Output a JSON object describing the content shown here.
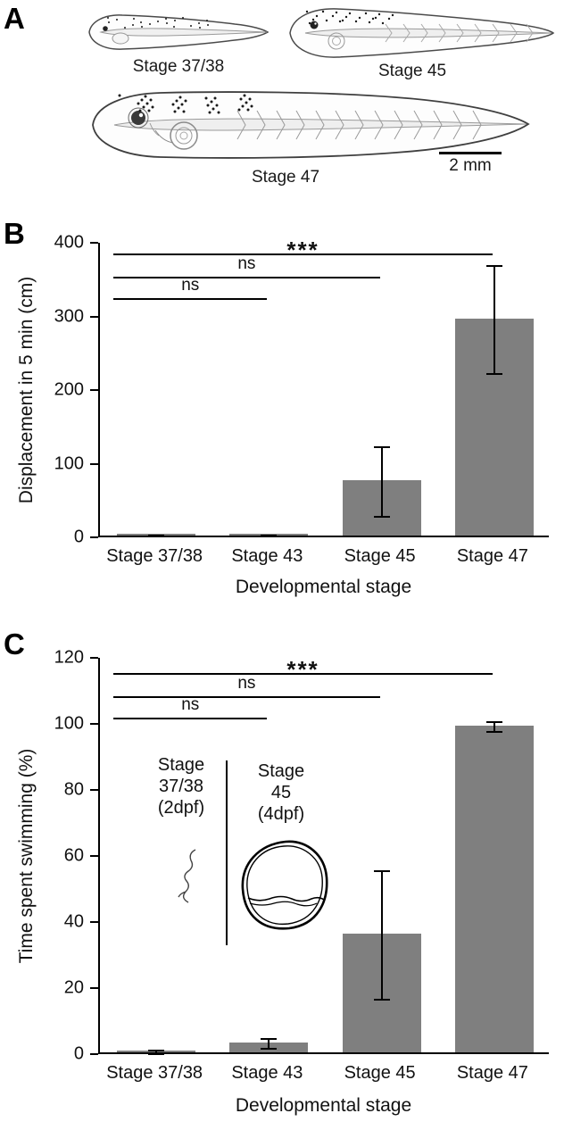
{
  "panel_a": {
    "label": "A",
    "stage_labels": [
      "Stage 37/38",
      "Stage 45",
      "Stage 47"
    ],
    "scale_bar_label": "2 mm"
  },
  "panel_b": {
    "label": "B"
  },
  "panel_c": {
    "label": "C",
    "inset": {
      "left_trace_label": "Stage\n37/38\n(2dpf)",
      "right_trace_label": "Stage\n45\n(4dpf)"
    }
  },
  "chart_data": [
    {
      "panel": "B",
      "type": "bar",
      "categories": [
        "Stage 37/38",
        "Stage 43",
        "Stage 45",
        "Stage 47"
      ],
      "values": [
        2,
        2,
        75,
        295
      ],
      "errors": [
        1,
        1,
        47,
        73
      ],
      "title": "",
      "xlabel": "Developmental stage",
      "ylabel": "Displacement in 5 min (cm)",
      "ylim": [
        0,
        400
      ],
      "yticks": [
        0,
        100,
        200,
        300,
        400
      ],
      "bar_color": "#7f7f7f",
      "grid": false,
      "annotations": [
        {
          "label": "ns",
          "from": 0,
          "to": 1,
          "y": 325
        },
        {
          "label": "ns",
          "from": 0,
          "to": 2,
          "y": 354
        },
        {
          "label": "***",
          "from": 0,
          "to": 3,
          "y": 385
        }
      ]
    },
    {
      "panel": "C",
      "type": "bar",
      "categories": [
        "Stage 37/38",
        "Stage 43",
        "Stage 45",
        "Stage 47"
      ],
      "values": [
        0.5,
        3,
        36,
        99
      ],
      "errors": [
        0.5,
        1.5,
        19.5,
        1.5
      ],
      "title": "",
      "xlabel": "Developmental stage",
      "ylabel": "Time spent swimming (%)",
      "ylim": [
        0,
        120
      ],
      "yticks": [
        0,
        20,
        40,
        60,
        80,
        100,
        120
      ],
      "bar_color": "#7f7f7f",
      "grid": false,
      "annotations": [
        {
          "label": "ns",
          "from": 0,
          "to": 1,
          "y": 102
        },
        {
          "label": "ns",
          "from": 0,
          "to": 2,
          "y": 108.5
        },
        {
          "label": "***",
          "from": 0,
          "to": 3,
          "y": 115.5
        }
      ]
    }
  ]
}
